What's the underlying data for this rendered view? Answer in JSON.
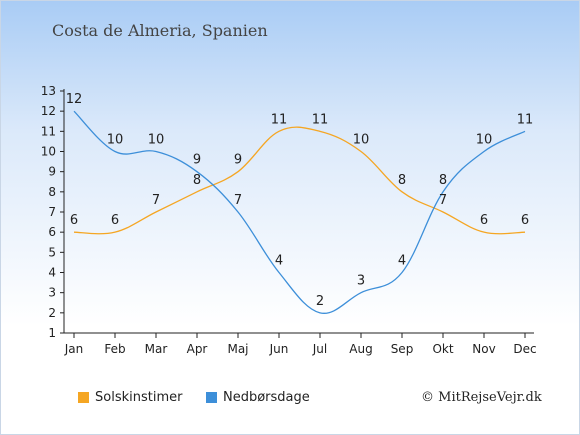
{
  "location_title": "Costa de Almeria, Spanien",
  "chart_data": {
    "type": "line",
    "categories": [
      "Jan",
      "Feb",
      "Mar",
      "Apr",
      "Maj",
      "Jun",
      "Jul",
      "Aug",
      "Sep",
      "Okt",
      "Nov",
      "Dec"
    ],
    "ylim": [
      1,
      13
    ],
    "yticks": [
      1,
      2,
      3,
      4,
      5,
      6,
      7,
      8,
      9,
      10,
      11,
      12,
      13
    ],
    "series": [
      {
        "name": "Solskinstimer",
        "color": "#f5a623",
        "values": [
          6,
          6,
          7,
          8,
          9,
          11,
          11,
          10,
          8,
          7,
          6,
          6
        ]
      },
      {
        "name": "Nedbørsdage",
        "color": "#3d8fd9",
        "values": [
          12,
          10,
          10,
          9,
          7,
          4,
          2,
          3,
          4,
          8,
          10,
          11
        ]
      }
    ]
  },
  "credit": "© MitRejseVejr.dk"
}
